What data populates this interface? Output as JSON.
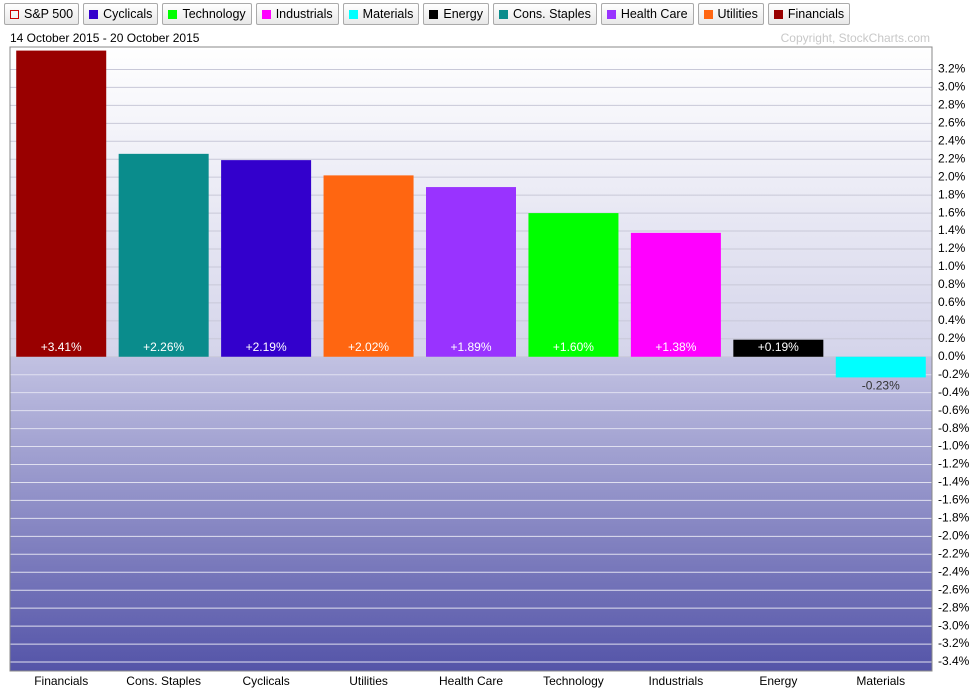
{
  "chart_data": {
    "type": "bar",
    "subtitle": "14 October 2015 - 20 October 2015",
    "annotation": "Copyright, StockCharts.com",
    "legend": [
      {
        "name": "S&P 500",
        "color": "#cc0000",
        "hollow": true
      },
      {
        "name": "Cyclicals",
        "color": "#3300cc"
      },
      {
        "name": "Technology",
        "color": "#00ff00"
      },
      {
        "name": "Industrials",
        "color": "#ff00ff"
      },
      {
        "name": "Materials",
        "color": "#00ffff"
      },
      {
        "name": "Energy",
        "color": "#000000"
      },
      {
        "name": "Cons. Staples",
        "color": "#0a8c8c"
      },
      {
        "name": "Health Care",
        "color": "#9933ff"
      },
      {
        "name": "Utilities",
        "color": "#ff6611"
      },
      {
        "name": "Financials",
        "color": "#990000"
      }
    ],
    "categories": [
      "Financials",
      "Cons. Staples",
      "Cyclicals",
      "Utilities",
      "Health Care",
      "Technology",
      "Industrials",
      "Energy",
      "Materials"
    ],
    "values": [
      3.41,
      2.26,
      2.19,
      2.02,
      1.89,
      1.6,
      1.38,
      0.19,
      -0.23
    ],
    "value_labels": [
      "+3.41%",
      "+2.26%",
      "+2.19%",
      "+2.02%",
      "+1.89%",
      "+1.60%",
      "+1.38%",
      "+0.19%",
      "-0.23%"
    ],
    "colors": [
      "#990000",
      "#0a8c8c",
      "#3300cc",
      "#ff6611",
      "#9933ff",
      "#00ff00",
      "#ff00ff",
      "#000000",
      "#00ffff"
    ],
    "ylim": [
      -3.5,
      3.45
    ],
    "yticks": [
      {
        "value": 3.2,
        "label": "3.2%"
      },
      {
        "value": 3.0,
        "label": "3.0%"
      },
      {
        "value": 2.8,
        "label": "2.8%"
      },
      {
        "value": 2.6,
        "label": "2.6%"
      },
      {
        "value": 2.4,
        "label": "2.4%"
      },
      {
        "value": 2.2,
        "label": "2.2%"
      },
      {
        "value": 2.0,
        "label": "2.0%"
      },
      {
        "value": 1.8,
        "label": "1.8%"
      },
      {
        "value": 1.6,
        "label": "1.6%"
      },
      {
        "value": 1.4,
        "label": "1.4%"
      },
      {
        "value": 1.2,
        "label": "1.2%"
      },
      {
        "value": 1.0,
        "label": "1.0%"
      },
      {
        "value": 0.8,
        "label": "0.8%"
      },
      {
        "value": 0.6,
        "label": "0.6%"
      },
      {
        "value": 0.4,
        "label": "0.4%"
      },
      {
        "value": 0.2,
        "label": "0.2%"
      },
      {
        "value": 0.0,
        "label": "0.0%"
      },
      {
        "value": -0.2,
        "label": "-0.2%"
      },
      {
        "value": -0.4,
        "label": "-0.4%"
      },
      {
        "value": -0.6,
        "label": "-0.6%"
      },
      {
        "value": -0.8,
        "label": "-0.8%"
      },
      {
        "value": -1.0,
        "label": "-1.0%"
      },
      {
        "value": -1.2,
        "label": "-1.2%"
      },
      {
        "value": -1.4,
        "label": "-1.4%"
      },
      {
        "value": -1.6,
        "label": "-1.6%"
      },
      {
        "value": -1.8,
        "label": "-1.8%"
      },
      {
        "value": -2.0,
        "label": "-2.0%"
      },
      {
        "value": -2.2,
        "label": "-2.2%"
      },
      {
        "value": -2.4,
        "label": "-2.4%"
      },
      {
        "value": -2.6,
        "label": "-2.6%"
      },
      {
        "value": -2.8,
        "label": "-2.8%"
      },
      {
        "value": -3.0,
        "label": "-3.0%"
      },
      {
        "value": -3.2,
        "label": "-3.2%"
      },
      {
        "value": -3.4,
        "label": "-3.4%"
      }
    ],
    "grid": true
  }
}
